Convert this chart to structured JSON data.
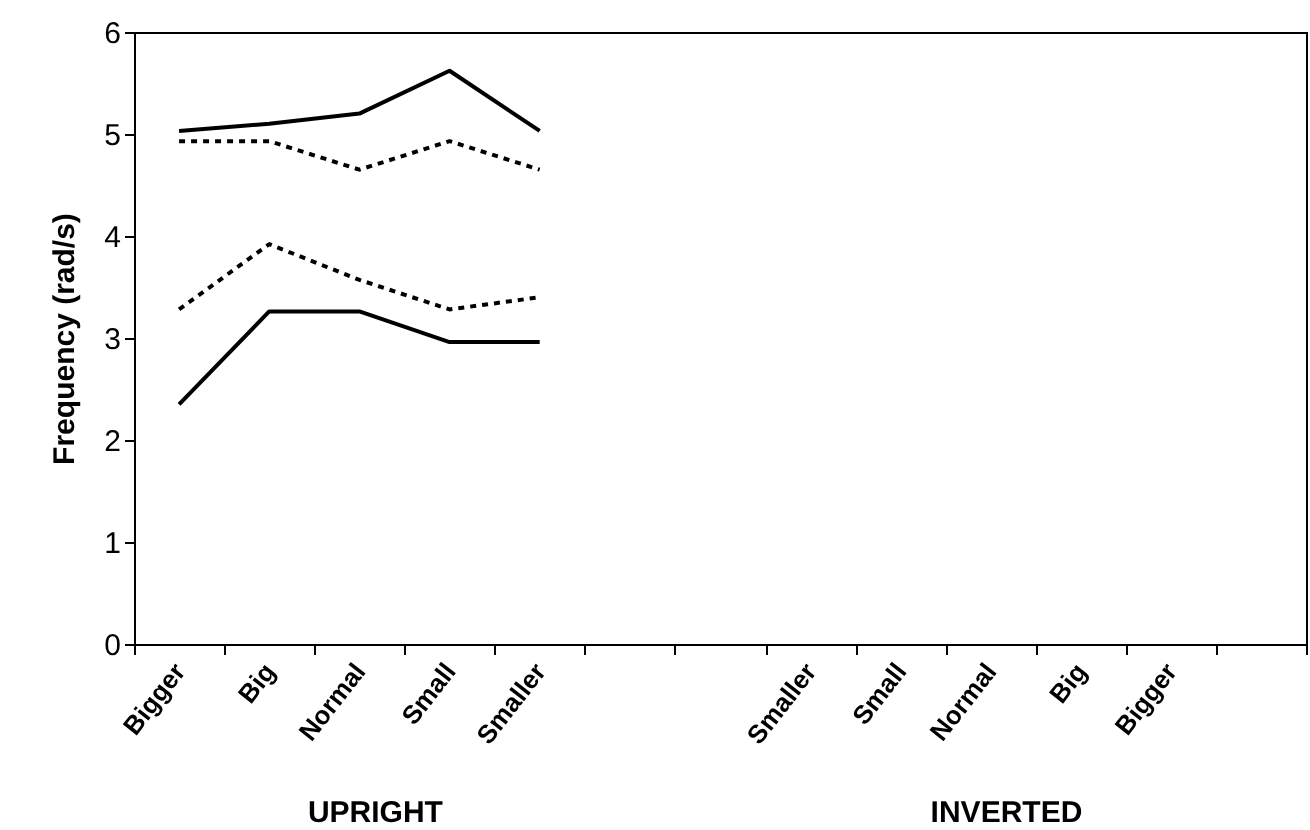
{
  "chart_data": {
    "type": "line",
    "ylabel": "Frequency (rad/s)",
    "categories": [
      "Bigger",
      "Big",
      "Normal",
      "Small",
      "Smaller",
      null,
      null,
      "Smaller",
      "Small",
      "Normal",
      "Big",
      "Bigger",
      null
    ],
    "series": [
      {
        "color": "#000000",
        "line_style": "solid",
        "values": [
          5.03,
          5.1,
          5.2,
          5.62,
          5.03,
          null,
          null,
          null,
          null,
          null,
          null,
          null,
          null
        ]
      },
      {
        "color": "#000000",
        "line_style": "dashed",
        "values": [
          4.93,
          4.93,
          4.65,
          4.93,
          4.65,
          null,
          null,
          null,
          null,
          null,
          null,
          null,
          null
        ]
      },
      {
        "color": "#000000",
        "line_style": "dashed",
        "values": [
          3.28,
          3.92,
          3.57,
          3.28,
          3.4,
          null,
          null,
          null,
          null,
          null,
          null,
          null,
          null
        ]
      },
      {
        "color": "#000000",
        "line_style": "solid",
        "values": [
          2.35,
          3.26,
          3.26,
          2.96,
          2.96,
          null,
          null,
          null,
          null,
          null,
          null,
          null,
          null
        ]
      }
    ],
    "ylim": [
      0,
      6
    ],
    "yticks": [
      0,
      1,
      2,
      3,
      4,
      5,
      6
    ],
    "grid": false,
    "marker": "none",
    "annotations": [
      "UPRIGHT",
      "INVERTED"
    ]
  }
}
